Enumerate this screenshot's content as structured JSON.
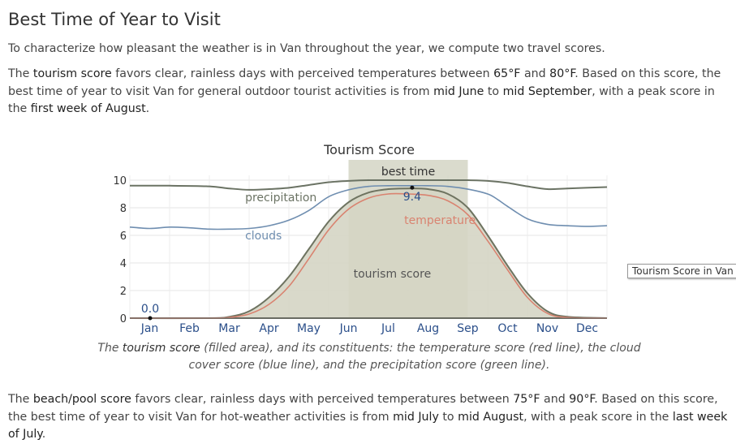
{
  "heading": "Best Time of Year to Visit",
  "intro": "To characterize how pleasant the weather is in Van throughout the year, we compute two travel scores.",
  "tourism_para": {
    "t1": "The ",
    "b1": "tourism score",
    "t2": " favors clear, rainless days with perceived temperatures between ",
    "b2": "65°F",
    "t3": " and ",
    "b3": "80°F",
    "t4": ". Based on this score, the best time of year to visit Van for general outdoor tourist activities is from ",
    "b4": "mid June",
    "t5": " to ",
    "b5": "mid September",
    "t6": ", with a peak score in the ",
    "b6": "first week of August",
    "t7": "."
  },
  "caption": {
    "t1": "The ",
    "b1": "tourism score",
    "t2": " (filled area), and its constituents: the temperature score (red line), the cloud cover score (blue line), and the precipitation score (green line)."
  },
  "beach_para": {
    "t1": "The ",
    "b1": "beach/pool score",
    "t2": " favors clear, rainless days with perceived temperatures between ",
    "b2": "75°F",
    "t3": " and ",
    "b3": "90°F",
    "t4": ". Based on this score, the best time of year to visit Van for hot-weather activities is from ",
    "b4": "mid July",
    "t5": " to ",
    "b5": "mid August",
    "t6": ", with a peak score in the ",
    "b6": "last week of July",
    "t7": "."
  },
  "legend_button": "Tourism Score in Van",
  "chart_data": {
    "type": "area",
    "title": "Tourism Score",
    "ylim": [
      0,
      10
    ],
    "y_ticks": [
      "0",
      "2",
      "4",
      "6",
      "8",
      "10"
    ],
    "x_ticks": [
      "Jan",
      "Feb",
      "Mar",
      "Apr",
      "May",
      "Jun",
      "Jul",
      "Aug",
      "Sep",
      "Oct",
      "Nov",
      "Dec"
    ],
    "x_range_months": [
      0,
      12
    ],
    "grid": true,
    "best_time_label": "best time",
    "best_time_range_months": [
      5.5,
      8.5
    ],
    "annotations": {
      "min": {
        "label": "0.0",
        "x": 0.0,
        "y": 0.0
      },
      "max": {
        "label": "9.4",
        "x": 7.1,
        "y": 9.4
      },
      "series_labels": {
        "precipitation": "precipitation",
        "clouds": "clouds",
        "temperature": "temperature",
        "tourism": "tourism score"
      }
    },
    "colors": {
      "area_fill": "#d5d5c4",
      "area_line": "#6e7360",
      "temperature": "#d98370",
      "clouds": "#6f8eb0",
      "precipitation": "#6b7364",
      "best_band": "#d4d5c4"
    },
    "series": [
      {
        "key": "tourism",
        "x": [
          0,
          2,
          2.5,
          3,
          3.5,
          4,
          4.5,
          5,
          5.5,
          6,
          6.5,
          7,
          7.5,
          8,
          8.5,
          9,
          9.5,
          10,
          10.5,
          11,
          12
        ],
        "values": [
          0,
          0,
          0.1,
          0.5,
          1.5,
          3.0,
          5.0,
          7.0,
          8.4,
          9.1,
          9.35,
          9.4,
          9.35,
          9.0,
          8.0,
          6.0,
          3.8,
          1.8,
          0.5,
          0.1,
          0
        ]
      },
      {
        "key": "temperature",
        "x": [
          0,
          2,
          2.5,
          3,
          3.5,
          4,
          4.5,
          5,
          5.5,
          6,
          6.5,
          7,
          7.5,
          8,
          8.5,
          9,
          9.5,
          10,
          10.5,
          11,
          12
        ],
        "values": [
          0,
          0,
          0.05,
          0.3,
          1.0,
          2.3,
          4.3,
          6.4,
          7.9,
          8.7,
          9.0,
          9.0,
          8.9,
          8.5,
          7.5,
          5.6,
          3.5,
          1.5,
          0.35,
          0.05,
          0
        ]
      },
      {
        "key": "clouds",
        "x": [
          0,
          0.5,
          1,
          1.5,
          2,
          2.5,
          3,
          3.5,
          4,
          4.5,
          5,
          5.5,
          6,
          6.5,
          7,
          7.5,
          8,
          8.5,
          9,
          9.25,
          9.5,
          10,
          10.5,
          11,
          11.5,
          12
        ],
        "values": [
          6.6,
          6.5,
          6.6,
          6.55,
          6.45,
          6.45,
          6.5,
          6.7,
          7.1,
          7.8,
          8.8,
          9.3,
          9.55,
          9.6,
          9.6,
          9.6,
          9.55,
          9.35,
          9.0,
          8.6,
          8.1,
          7.2,
          6.8,
          6.7,
          6.65,
          6.7
        ]
      },
      {
        "key": "precipitation",
        "x": [
          0,
          1,
          2,
          2.5,
          3,
          3.5,
          4,
          4.5,
          5,
          5.5,
          6,
          7,
          8,
          8.5,
          9,
          9.5,
          10,
          10.5,
          11,
          12
        ],
        "values": [
          9.6,
          9.6,
          9.55,
          9.4,
          9.3,
          9.35,
          9.45,
          9.65,
          9.85,
          9.95,
          10.0,
          10.0,
          10.0,
          10.0,
          9.95,
          9.8,
          9.55,
          9.35,
          9.4,
          9.5
        ]
      }
    ]
  }
}
